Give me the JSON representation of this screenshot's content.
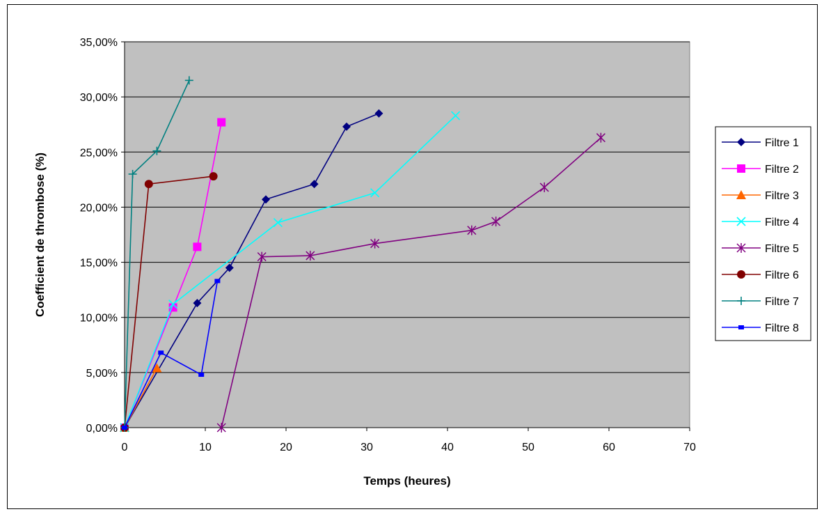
{
  "chart_data": {
    "type": "line",
    "title": "",
    "xlabel": "Temps (heures)",
    "ylabel": "Coefficient de thrombose (%)",
    "xlim": [
      0,
      70
    ],
    "ylim": [
      0,
      0.35
    ],
    "x_ticks": [
      0,
      10,
      20,
      30,
      40,
      50,
      60,
      70
    ],
    "x_tick_labels": [
      "0",
      "10",
      "20",
      "30",
      "40",
      "50",
      "60",
      "70"
    ],
    "y_ticks": [
      0,
      0.05,
      0.1,
      0.15,
      0.2,
      0.25,
      0.3,
      0.35
    ],
    "y_tick_labels": [
      "0,00%",
      "5,00%",
      "10,00%",
      "15,00%",
      "20,00%",
      "25,00%",
      "30,00%",
      "35,00%"
    ],
    "grid": "horizontal",
    "plot_background": "#c0c0c0",
    "legend_position": "right",
    "series": [
      {
        "name": "Filtre 1",
        "color": "#000080",
        "marker": "diamond",
        "x": [
          0,
          9,
          13,
          17.5,
          23.5,
          27.5,
          31.5
        ],
        "y": [
          0,
          0.113,
          0.145,
          0.207,
          0.221,
          0.273,
          0.285
        ]
      },
      {
        "name": "Filtre 2",
        "color": "#ff00ff",
        "marker": "square",
        "x": [
          0,
          6,
          9,
          12
        ],
        "y": [
          0,
          0.109,
          0.164,
          0.277
        ]
      },
      {
        "name": "Filtre 3",
        "color": "#ff6600",
        "marker": "triangle",
        "x": [
          0,
          4
        ],
        "y": [
          0,
          0.054
        ]
      },
      {
        "name": "Filtre 4",
        "color": "#00ffff",
        "marker": "x",
        "x": [
          0,
          6,
          19,
          31,
          41
        ],
        "y": [
          0,
          0.112,
          0.186,
          0.213,
          0.283
        ]
      },
      {
        "name": "Filtre 5",
        "color": "#800080",
        "marker": "star",
        "x": [
          12,
          17,
          23,
          31,
          43,
          46,
          52,
          59
        ],
        "y": [
          0,
          0.155,
          0.156,
          0.167,
          0.179,
          0.187,
          0.218,
          0.263
        ]
      },
      {
        "name": "Filtre 6",
        "color": "#800000",
        "marker": "circle",
        "x": [
          0,
          3,
          11
        ],
        "y": [
          0,
          0.221,
          0.228
        ]
      },
      {
        "name": "Filtre 7",
        "color": "#008080",
        "marker": "plus",
        "x": [
          0,
          1,
          4,
          8
        ],
        "y": [
          0,
          0.23,
          0.251,
          0.315
        ]
      },
      {
        "name": "Filtre 8",
        "color": "#0000ff",
        "marker": "smallsquare",
        "x": [
          0,
          4.5,
          9.5,
          11.5
        ],
        "y": [
          0,
          0.068,
          0.048,
          0.133
        ]
      }
    ]
  }
}
